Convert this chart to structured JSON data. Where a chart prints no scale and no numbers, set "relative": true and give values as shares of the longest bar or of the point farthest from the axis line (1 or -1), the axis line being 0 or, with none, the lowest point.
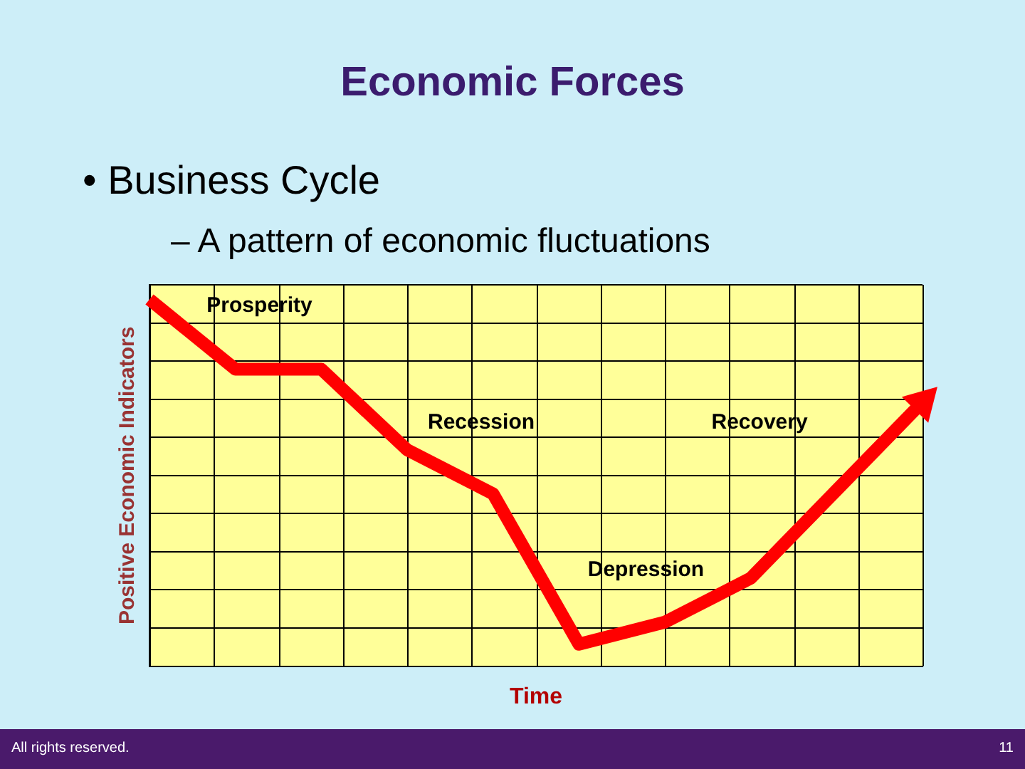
{
  "chart_data": {
    "type": "line",
    "title": "Economic Forces",
    "subtitle": "• Business Cycle",
    "xlabel": "Time",
    "ylabel": "Positive Economic Indicators",
    "annotations": [
      "– A pattern of economic fluctuations",
      "Prosperity",
      "Recession",
      "Depression",
      "Recovery",
      "All rights reserved.",
      "11"
    ],
    "categories": [
      null,
      null,
      null,
      null,
      null,
      null,
      null,
      null,
      null,
      null
    ],
    "series": [
      {
        "color": "#ff0000",
        "values": [
          1.0,
          0.81,
          0.81,
          0.59,
          0.47,
          0.06,
          0.12,
          0.24,
          0.48,
          0.72
        ]
      }
    ],
    "relative": true,
    "grid": true,
    "tick_labels": false
  }
}
